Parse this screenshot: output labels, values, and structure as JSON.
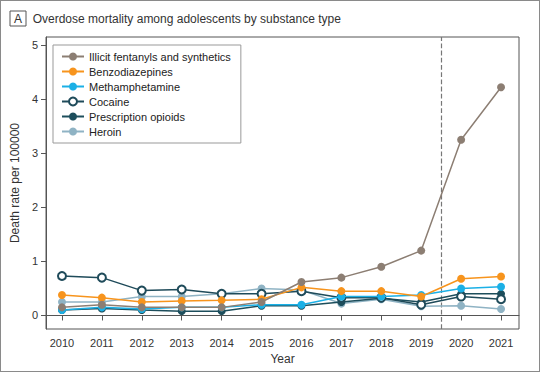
{
  "chart_data": {
    "type": "line",
    "panel_label": "A",
    "title": "Overdose mortality among adolescents by substance type",
    "x_label": "Year",
    "y_label": "Death rate per 100000",
    "x": [
      2010,
      2011,
      2012,
      2013,
      2014,
      2015,
      2016,
      2017,
      2018,
      2019,
      2020,
      2021
    ],
    "xlim": [
      2009.6,
      2021.45
    ],
    "xticks": [
      2010,
      2011,
      2012,
      2013,
      2014,
      2015,
      2016,
      2017,
      2018,
      2019,
      2020,
      2021
    ],
    "ylim": [
      -0.25,
      5.15
    ],
    "yticks": [
      0,
      1,
      2,
      3,
      4,
      5
    ],
    "grid": false,
    "legend": "upper left",
    "vline": 2019.5,
    "vline_style": "dashed",
    "series": [
      {
        "name": "Illicit fentanyls and synthetics",
        "color": "#8c7e73",
        "marker": "circle",
        "values": [
          0.15,
          0.2,
          0.15,
          0.15,
          0.15,
          0.25,
          0.62,
          0.7,
          0.9,
          1.2,
          3.25,
          4.22
        ]
      },
      {
        "name": "Benzodiazepines",
        "color": "#f7941d",
        "marker": "circle",
        "values": [
          0.38,
          0.33,
          0.25,
          0.27,
          0.28,
          0.3,
          0.52,
          0.45,
          0.45,
          0.35,
          0.68,
          0.72
        ]
      },
      {
        "name": "Methamphetamine",
        "color": "#1bb0e6",
        "marker": "circle",
        "values": [
          0.1,
          0.15,
          0.12,
          0.15,
          0.15,
          0.2,
          0.2,
          0.35,
          0.35,
          0.38,
          0.5,
          0.53
        ]
      },
      {
        "name": "Cocaine",
        "color": "#1f4b5a",
        "marker": "open",
        "values": [
          0.73,
          0.7,
          0.46,
          0.48,
          0.4,
          0.4,
          0.45,
          0.33,
          0.33,
          0.2,
          0.35,
          0.3
        ]
      },
      {
        "name": "Prescription opioids",
        "color": "#1d4e5c",
        "marker": "circle",
        "values": [
          0.1,
          0.13,
          0.1,
          0.08,
          0.08,
          0.18,
          0.18,
          0.25,
          0.32,
          0.25,
          0.4,
          0.4
        ]
      },
      {
        "name": "Heroin",
        "color": "#8fb3c4",
        "marker": "circle",
        "values": [
          0.25,
          0.25,
          0.35,
          0.35,
          0.4,
          0.5,
          0.47,
          0.22,
          0.3,
          0.17,
          0.18,
          0.12
        ]
      }
    ]
  }
}
